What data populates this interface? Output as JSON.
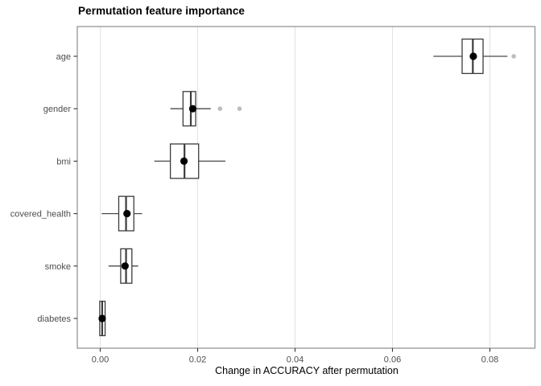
{
  "chart_data": {
    "type": "boxplot",
    "orientation": "horizontal",
    "title": "Permutation feature importance",
    "xlabel": "Change in ACCURACY after permutation",
    "ylabel": "",
    "categories": [
      "age",
      "gender",
      "bmi",
      "covered_health",
      "smoke",
      "diabetes"
    ],
    "xlim": [
      -0.005,
      0.089
    ],
    "xticks": [
      0,
      0.02,
      0.04,
      0.06,
      0.08
    ],
    "xtick_labels": [
      "0.00",
      "0.02",
      "0.04",
      "0.06",
      "0.08"
    ],
    "grid": "vertical major gridlines only, white panel background, gray panel border",
    "legend": "none",
    "series": [
      {
        "name": "age",
        "whisker_low": 0.0684,
        "q1": 0.0743,
        "median": 0.0765,
        "mean": 0.0766,
        "q3": 0.0786,
        "whisker_high": 0.0836,
        "outliers": [
          0.0849
        ]
      },
      {
        "name": "gender",
        "whisker_low": 0.0144,
        "q1": 0.017,
        "median": 0.0186,
        "mean": 0.019,
        "q3": 0.0196,
        "whisker_high": 0.0227,
        "outliers": [
          0.0246,
          0.0286
        ]
      },
      {
        "name": "bmi",
        "whisker_low": 0.0111,
        "q1": 0.0144,
        "median": 0.0173,
        "mean": 0.0172,
        "q3": 0.0202,
        "whisker_high": 0.0257,
        "outliers": []
      },
      {
        "name": "covered_health",
        "whisker_low": 0.0003,
        "q1": 0.0038,
        "median": 0.0053,
        "mean": 0.0055,
        "q3": 0.0069,
        "whisker_high": 0.0086,
        "outliers": []
      },
      {
        "name": "smoke",
        "whisker_low": 0.0017,
        "q1": 0.0042,
        "median": 0.0053,
        "mean": 0.0051,
        "q3": 0.0065,
        "whisker_high": 0.0078,
        "outliers": []
      },
      {
        "name": "diabetes",
        "whisker_low": -0.0001,
        "q1": -0.0001,
        "median": 0.0004,
        "mean": 0.0004,
        "q3": 0.001,
        "whisker_high": 0.001,
        "outliers": []
      }
    ],
    "colors": {
      "box_stroke": "#3c3c3c",
      "whisker_stroke": "#4a4a4a",
      "median_stroke": "#3c3c3c",
      "mean_dot": "#000000",
      "outlier_fill": "#bdbdbd",
      "gridline": "#e3e3e3",
      "panel_border": "#8c8c8c",
      "tick_mark": "#333333",
      "tick_label": "#4d4d4d",
      "panel_background": "#ffffff"
    }
  }
}
